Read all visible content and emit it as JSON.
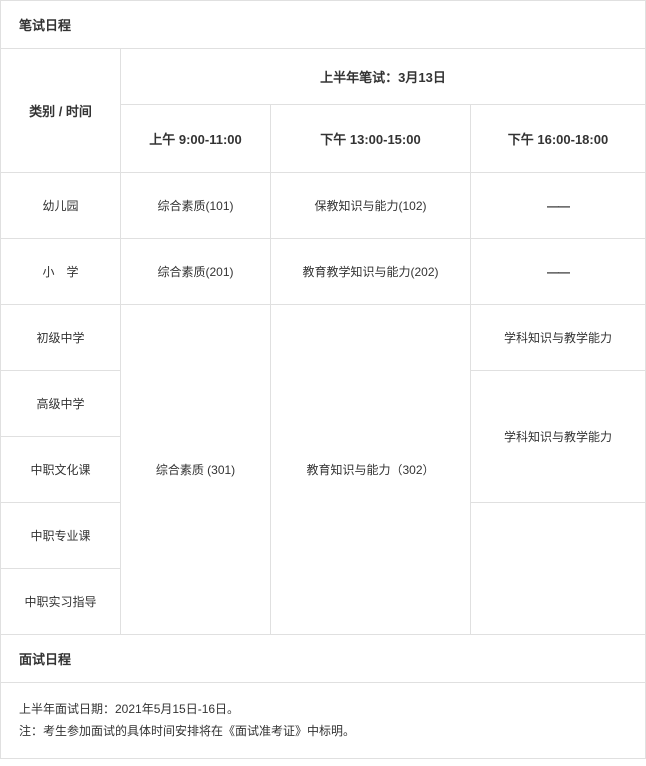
{
  "written_section_title": "笔试日程",
  "category_time_header": "类别  /  时间",
  "semester_header": "上半年笔试：3月13日",
  "time_slots": {
    "am": "上午 9:00-11:00",
    "pm1": "下午 13:00-15:00",
    "pm2": "下午 16:00-18:00"
  },
  "dash": "——",
  "rows": {
    "kindergarten": {
      "label": "幼儿园",
      "am": "综合素质(101)",
      "pm1": "保教知识与能力(102)"
    },
    "primary": {
      "label": "小　学",
      "am": "综合素质(201)",
      "pm1": "教育教学知识与能力(202)"
    },
    "junior": {
      "label": "初级中学",
      "pm2": "学科知识与教学能力"
    },
    "senior": {
      "label": "高级中学",
      "pm2_merged": "学科知识与教学能力"
    },
    "voc_culture": {
      "label": "中职文化课"
    },
    "voc_major": {
      "label": "中职专业课"
    },
    "voc_intern": {
      "label": "中职实习指导"
    },
    "shared_301": {
      "am": "综合素质 (301)",
      "pm1": "教育知识与能力（302）"
    }
  },
  "interview_section_title": "面试日程",
  "interview_date_line": "上半年面试日期：2021年5月15日-16日。",
  "interview_note_line": "注：考生参加面试的具体时间安排将在《面试准考证》中标明。",
  "colors": {
    "border": "#e0e0e0",
    "text": "#333333",
    "background": "#ffffff"
  }
}
